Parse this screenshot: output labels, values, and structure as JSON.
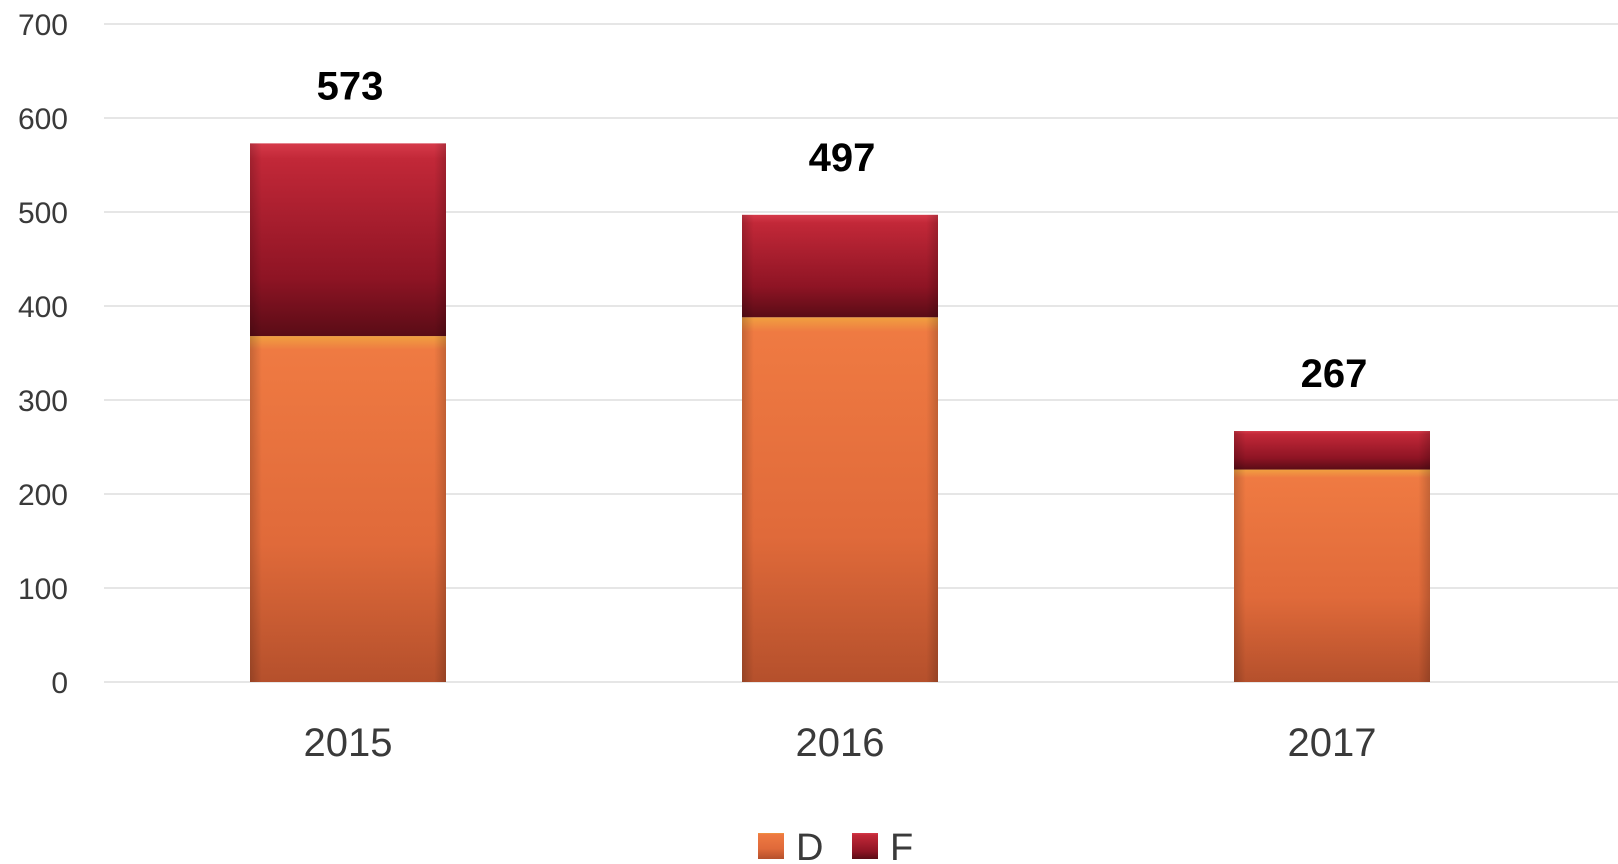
{
  "chart_data": {
    "type": "bar",
    "stacked": true,
    "categories": [
      "2015",
      "2016",
      "2017"
    ],
    "series": [
      {
        "name": "D",
        "values": [
          368,
          388,
          226
        ],
        "color": "#e8733f"
      },
      {
        "name": "F",
        "values": [
          205,
          109,
          41
        ],
        "color": "#b01e2e"
      }
    ],
    "totals": [
      "573",
      "497",
      "267"
    ],
    "ylim": [
      0,
      700
    ],
    "yticks": [
      "0",
      "100",
      "200",
      "300",
      "400",
      "500",
      "600",
      "700"
    ],
    "grid": true,
    "legend_position": "bottom"
  }
}
